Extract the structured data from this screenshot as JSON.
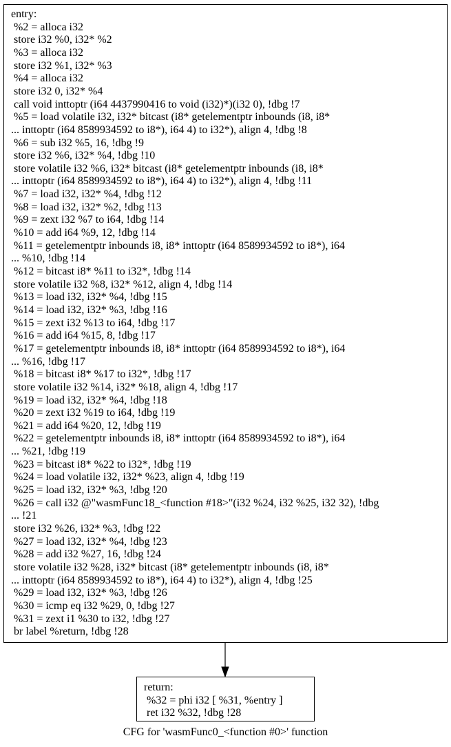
{
  "graph": {
    "title": "CFG for 'wasmFunc0_<function #0>' function"
  },
  "nodes": [
    {
      "id": "entry",
      "lines": [
        "entry:",
        " %2 = alloca i32",
        " store i32 %0, i32* %2",
        " %3 = alloca i32",
        " store i32 %1, i32* %3",
        " %4 = alloca i32",
        " store i32 0, i32* %4",
        " call void inttoptr (i64 4437990416 to void (i32)*)(i32 0), !dbg !7",
        " %5 = load volatile i32, i32* bitcast (i8* getelementptr inbounds (i8, i8*",
        "... inttoptr (i64 8589934592 to i8*), i64 4) to i32*), align 4, !dbg !8",
        " %6 = sub i32 %5, 16, !dbg !9",
        " store i32 %6, i32* %4, !dbg !10",
        " store volatile i32 %6, i32* bitcast (i8* getelementptr inbounds (i8, i8*",
        "... inttoptr (i64 8589934592 to i8*), i64 4) to i32*), align 4, !dbg !11",
        " %7 = load i32, i32* %4, !dbg !12",
        " %8 = load i32, i32* %2, !dbg !13",
        " %9 = zext i32 %7 to i64, !dbg !14",
        " %10 = add i64 %9, 12, !dbg !14",
        " %11 = getelementptr inbounds i8, i8* inttoptr (i64 8589934592 to i8*), i64",
        "... %10, !dbg !14",
        " %12 = bitcast i8* %11 to i32*, !dbg !14",
        " store volatile i32 %8, i32* %12, align 4, !dbg !14",
        " %13 = load i32, i32* %4, !dbg !15",
        " %14 = load i32, i32* %3, !dbg !16",
        " %15 = zext i32 %13 to i64, !dbg !17",
        " %16 = add i64 %15, 8, !dbg !17",
        " %17 = getelementptr inbounds i8, i8* inttoptr (i64 8589934592 to i8*), i64",
        "... %16, !dbg !17",
        " %18 = bitcast i8* %17 to i32*, !dbg !17",
        " store volatile i32 %14, i32* %18, align 4, !dbg !17",
        " %19 = load i32, i32* %4, !dbg !18",
        " %20 = zext i32 %19 to i64, !dbg !19",
        " %21 = add i64 %20, 12, !dbg !19",
        " %22 = getelementptr inbounds i8, i8* inttoptr (i64 8589934592 to i8*), i64",
        "... %21, !dbg !19",
        " %23 = bitcast i8* %22 to i32*, !dbg !19",
        " %24 = load volatile i32, i32* %23, align 4, !dbg !19",
        " %25 = load i32, i32* %3, !dbg !20",
        " %26 = call i32 @\"wasmFunc18_<function #18>\"(i32 %24, i32 %25, i32 32), !dbg",
        "... !21",
        " store i32 %26, i32* %3, !dbg !22",
        " %27 = load i32, i32* %4, !dbg !23",
        " %28 = add i32 %27, 16, !dbg !24",
        " store volatile i32 %28, i32* bitcast (i8* getelementptr inbounds (i8, i8*",
        "... inttoptr (i64 8589934592 to i8*), i64 4) to i32*), align 4, !dbg !25",
        " %29 = load i32, i32* %3, !dbg !26",
        " %30 = icmp eq i32 %29, 0, !dbg !27",
        " %31 = zext i1 %30 to i32, !dbg !27",
        " br label %return, !dbg !28"
      ]
    },
    {
      "id": "return",
      "lines": [
        "return:",
        " %32 = phi i32 [ %31, %entry ]",
        " ret i32 %32, !dbg !28"
      ]
    }
  ],
  "edges": [
    {
      "from": "entry",
      "to": "return"
    }
  ]
}
